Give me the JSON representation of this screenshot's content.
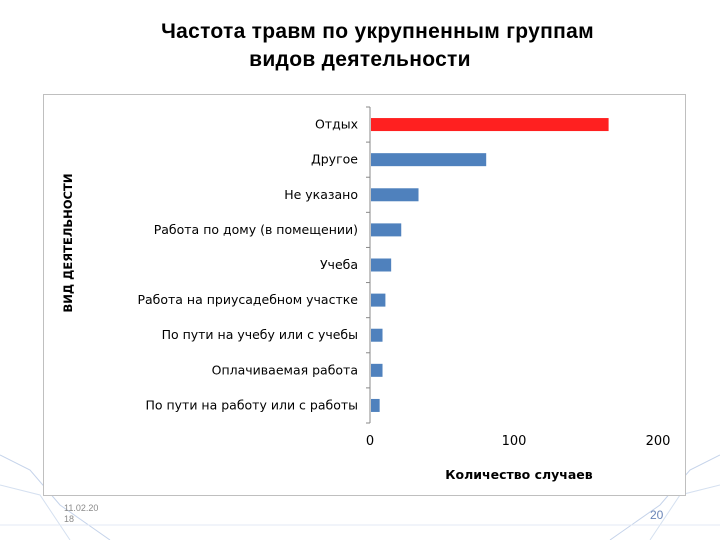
{
  "slide": {
    "title_line1": "Частота травм по укрупненным группам",
    "title_line2": "видов деятельности",
    "date": "11.02.20\n18",
    "page_number": "20"
  },
  "chart_data": {
    "type": "bar",
    "orientation": "horizontal",
    "categories": [
      "Отдых",
      "Другое",
      "Не указано",
      "Работа по дому (в помещении)",
      "Учеба",
      "Работа на приусадебном участке",
      "По пути на учебу или с учебы",
      "Оплачиваемая работа",
      "По пути на работу или с работы"
    ],
    "values": [
      165,
      80,
      33,
      21,
      14,
      10,
      8,
      8,
      6
    ],
    "colors": [
      "#ff2020",
      "#4f81bd",
      "#4f81bd",
      "#4f81bd",
      "#4f81bd",
      "#4f81bd",
      "#4f81bd",
      "#4f81bd",
      "#4f81bd"
    ],
    "xlabel": "Количество случаев",
    "ylabel": "ВИД ДЕЯТЕЛЬНОСТИ",
    "xlim": [
      0,
      200
    ],
    "xticks": [
      "0",
      "100",
      "200"
    ],
    "grid": false,
    "legend": "none"
  }
}
